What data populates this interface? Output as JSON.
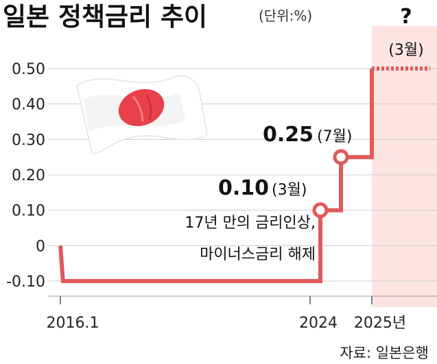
{
  "title": "일본 정책금리 추이",
  "unit": "(단위:%)",
  "source": "자료: 일본은행",
  "colors": {
    "line": "#e05a5a",
    "forecast_band": "#fbe4e1",
    "marker_fill": "#ffffff",
    "grid": "#cccccc",
    "flag_red": "#e8414a"
  },
  "flag_icon": "japan-flag-icon",
  "annotations": {
    "mar2024": {
      "value": "0.10",
      "month": "(3월)",
      "note_line1": "17년 만의 금리인상,",
      "note_line2": "마이너스금리 해제"
    },
    "jul2024": {
      "value": "0.25",
      "month": "(7월)"
    },
    "mar2025": {
      "mark": "?",
      "month": "(3월)"
    }
  },
  "chart_data": {
    "type": "line",
    "title": "일본 정책금리 추이",
    "ylabel": "(단위:%)",
    "xlabel": "",
    "ylim": [
      -0.1,
      0.5
    ],
    "yticks": [
      "0.50",
      "0.40",
      "0.30",
      "0.20",
      "0.10",
      "0",
      "-0.10"
    ],
    "ytick_values": [
      0.5,
      0.4,
      0.3,
      0.2,
      0.1,
      0,
      -0.1
    ],
    "xtick_labels": [
      "2016.1",
      "2024",
      "2025년"
    ],
    "xtick_dates": [
      "2016-01",
      "2024-01",
      "2025-01"
    ],
    "series": [
      {
        "points": [
          {
            "x": "2016-01",
            "y": 0
          },
          {
            "x": "2016-02",
            "y": -0.1
          },
          {
            "x": "2024-03",
            "y": -0.1
          },
          {
            "x": "2024-03",
            "y": 0.1
          },
          {
            "x": "2024-07",
            "y": 0.1
          },
          {
            "x": "2024-07",
            "y": 0.25
          },
          {
            "x": "2025-01",
            "y": 0.25
          },
          {
            "x": "2025-01",
            "y": 0.5
          }
        ],
        "markers": [
          {
            "x": "2024-03",
            "y": 0.1
          },
          {
            "x": "2024-07",
            "y": 0.25
          }
        ]
      }
    ],
    "forecast": {
      "from": "2025-01",
      "y": 0.5,
      "style": "dotted"
    },
    "grid": true,
    "legend": "none"
  }
}
